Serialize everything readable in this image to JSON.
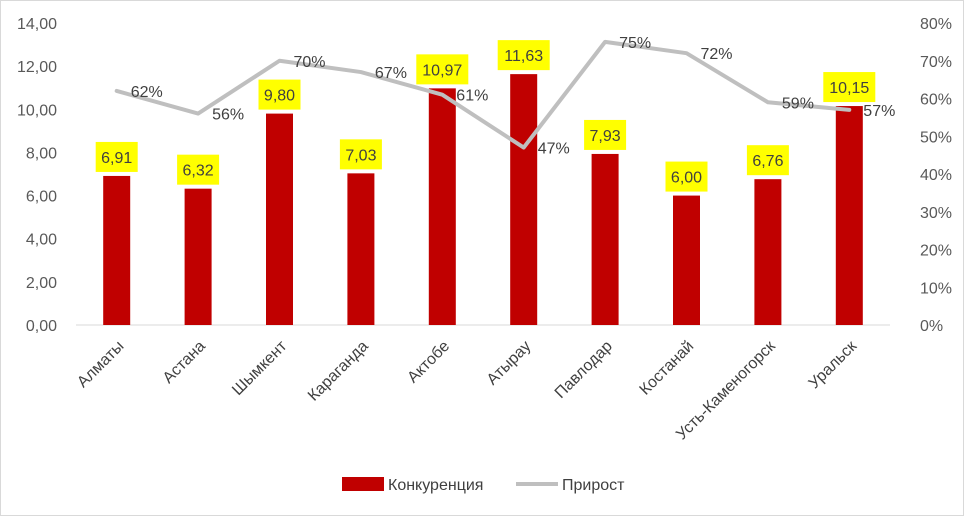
{
  "chart_data": {
    "type": "bar+line",
    "title": "",
    "categories": [
      "Алматы",
      "Астана",
      "Шымкент",
      "Караганда",
      "Актобе",
      "Атырау",
      "Павлодар",
      "Костанай",
      "Усть-Каменогорск",
      "Уральск"
    ],
    "series": [
      {
        "name": "Конкуренция",
        "type": "bar",
        "axis": "left",
        "color": "#c00000",
        "values": [
          6.91,
          6.32,
          9.8,
          7.03,
          10.97,
          11.63,
          7.93,
          6.0,
          6.76,
          10.15
        ],
        "labels": [
          "6,91",
          "6,32",
          "9,80",
          "7,03",
          "10,97",
          "11,63",
          "7,93",
          "6,00",
          "6,76",
          "10,15"
        ],
        "label_highlight": "#ffff00"
      },
      {
        "name": "Прирост",
        "type": "line",
        "axis": "right",
        "color": "#bfbfbf",
        "values": [
          62,
          56,
          70,
          67,
          61,
          47,
          75,
          72,
          59,
          57
        ],
        "labels": [
          "62%",
          "56%",
          "70%",
          "67%",
          "61%",
          "47%",
          "75%",
          "72%",
          "59%",
          "57%"
        ]
      }
    ],
    "y_left": {
      "min": 0,
      "max": 14,
      "step": 2,
      "ticks": [
        "0,00",
        "2,00",
        "4,00",
        "6,00",
        "8,00",
        "10,00",
        "12,00",
        "14,00"
      ]
    },
    "y_right": {
      "min": 0,
      "max": 80,
      "step": 10,
      "ticks": [
        "0%",
        "10%",
        "20%",
        "30%",
        "40%",
        "50%",
        "60%",
        "70%",
        "80%"
      ]
    },
    "grid": false,
    "legend": "bottom"
  }
}
